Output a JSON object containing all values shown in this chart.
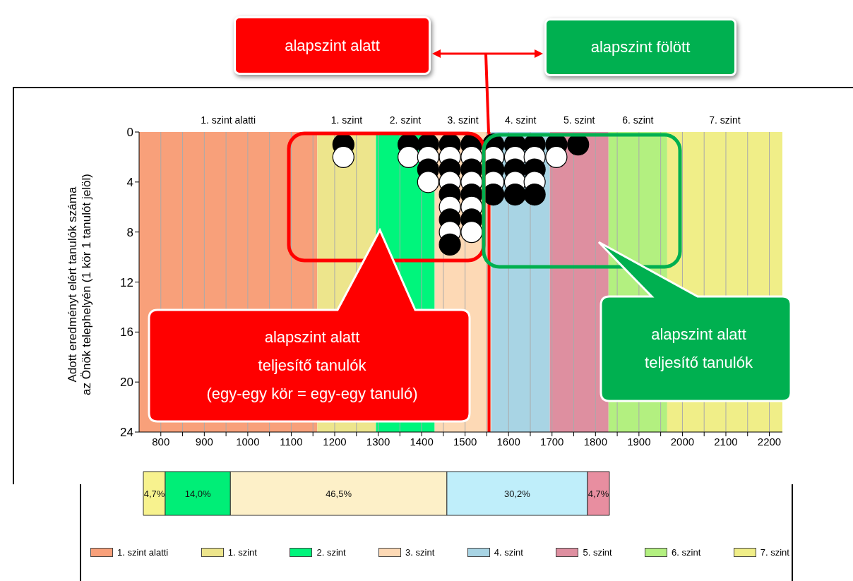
{
  "chart_data": [
    {
      "type": "scatter",
      "legend": "bottom",
      "ylabel": "Adott eredményt elért tanulók száma\naz Önök telephelyén (1 kör 1 tanulót jelöl)",
      "marker": "circle",
      "grid": "x",
      "xlim": [
        750,
        2230
      ],
      "xticks": [
        800,
        {
          "value": 850,
          "label": null
        },
        900,
        {
          "value": 950,
          "label": null
        },
        1000,
        {
          "value": 1050,
          "label": null
        },
        1100,
        {
          "value": 1150,
          "label": null
        },
        1200,
        {
          "value": 1250,
          "label": null
        },
        1300,
        {
          "value": 1350,
          "label": null
        },
        1400,
        {
          "value": 1450,
          "label": null
        },
        1500,
        {
          "value": 1550,
          "label": null
        },
        1600,
        {
          "value": 1650,
          "label": null
        },
        1700,
        {
          "value": 1750,
          "label": null
        },
        1800,
        {
          "value": 1850,
          "label": null
        },
        1900,
        {
          "value": 1950,
          "label": null
        },
        2000,
        {
          "value": 2050,
          "label": null
        },
        2100,
        {
          "value": 2150,
          "label": null
        },
        2200
      ],
      "ylim": [
        24,
        0
      ],
      "yticks": [
        0,
        4,
        8,
        12,
        16,
        20,
        24
      ],
      "series": [
        {
          "x": [
            1220,
            1220,
            1370,
            1370,
            1415,
            1415,
            1415,
            1415,
            1465,
            1465,
            1465,
            1465,
            1465,
            1465,
            1465,
            1465,
            1465,
            1515,
            1515,
            1515,
            1515,
            1515,
            1515,
            1515,
            1515,
            1565,
            1565,
            1565,
            1565,
            1565,
            1615,
            1615,
            1615,
            1615,
            1615,
            1660,
            1660,
            1660,
            1660,
            1660,
            1710,
            1710,
            1760
          ],
          "values": [
            1,
            2,
            1,
            2,
            1,
            2,
            3,
            4,
            1,
            2,
            3,
            4,
            5,
            6,
            7,
            8,
            9,
            1,
            2,
            3,
            4,
            5,
            6,
            7,
            8,
            1,
            2,
            3,
            4,
            5,
            1,
            2,
            3,
            4,
            5,
            1,
            2,
            3,
            4,
            5,
            1,
            2,
            1
          ],
          "colors": [
            "#000000",
            "#ffffff",
            "#000000",
            "#ffffff",
            "#000000",
            "#ffffff",
            "#000000",
            "#ffffff",
            "#000000",
            "#ffffff",
            "#000000",
            "#ffffff",
            "#000000",
            "#ffffff",
            "#000000",
            "#ffffff",
            "#000000",
            "#000000",
            "#ffffff",
            "#000000",
            "#ffffff",
            "#000000",
            "#ffffff",
            "#000000",
            "#ffffff",
            "#000000",
            "#ffffff",
            "#000000",
            "#ffffff",
            "#000000",
            "#000000",
            "#ffffff",
            "#000000",
            "#ffffff",
            "#000000",
            "#000000",
            "#ffffff",
            "#000000",
            "#ffffff",
            "#000000",
            "#000000",
            "#ffffff",
            "#000000"
          ]
        }
      ],
      "bands": [
        {
          "axis": "x",
          "from": 750,
          "to": 1160,
          "label": "1. szint alatti",
          "color": "#f8a07a"
        },
        {
          "axis": "x",
          "from": 1160,
          "to": 1295,
          "label": "1. szint",
          "color": "#ede58c"
        },
        {
          "axis": "x",
          "from": 1295,
          "to": 1430,
          "label": "2. szint",
          "color": "#00f57c"
        },
        {
          "axis": "x",
          "from": 1430,
          "to": 1560,
          "label": "3. szint",
          "color": "#fdd9b5"
        },
        {
          "axis": "x",
          "from": 1560,
          "to": 1695,
          "label": "4. szint",
          "color": "#a8d4e4"
        },
        {
          "axis": "x",
          "from": 1695,
          "to": 1830,
          "label": "5. szint",
          "color": "#de8fa0"
        },
        {
          "axis": "x",
          "from": 1830,
          "to": 1965,
          "label": "6. szint",
          "color": "#b3f080"
        },
        {
          "axis": "x",
          "from": 1965,
          "to": 2230,
          "label": "7. szint",
          "color": "#f0ee88"
        }
      ],
      "ref_lines": [
        {
          "axis": "x",
          "value": 1555,
          "color": "#ff0000"
        }
      ],
      "annotations": [
        "alapszint alatt",
        "alapszint fölött",
        "alapszint alatt\nteljesítő tanulók\n(egy-egy kör = egy-egy tanuló)",
        "alapszint alatt\nteljesítő tanulók"
      ]
    },
    {
      "type": "bar",
      "orientation": "horizontal",
      "stacked": true,
      "categories": [
        null
      ],
      "series": [
        {
          "color": "#f7f28e",
          "values": [
            4.7
          ],
          "value_labels": [
            "4,7%"
          ]
        },
        {
          "color": "#00ee77",
          "values": [
            14.0
          ],
          "value_labels": [
            "14,0%"
          ]
        },
        {
          "color": "#fdf0c8",
          "values": [
            46.5
          ],
          "value_labels": [
            "46,5%"
          ]
        },
        {
          "color": "#bfeefa",
          "values": [
            30.2
          ],
          "value_labels": [
            "30,2%"
          ]
        },
        {
          "color": "#e88ea0",
          "values": [
            4.7
          ],
          "value_labels": [
            "4,7%"
          ]
        }
      ]
    }
  ]
}
